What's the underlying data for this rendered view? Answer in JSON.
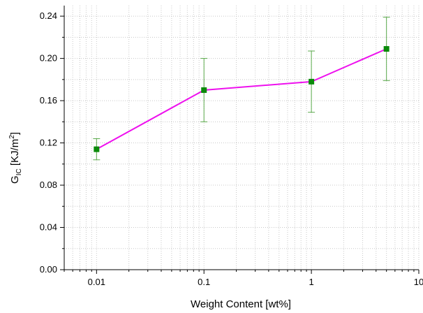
{
  "chart_data": {
    "type": "line",
    "x_scale": "log",
    "title": "",
    "xlabel": "Weight Content [wt%]",
    "ylabel": {
      "main": "G",
      "subscript": "IC",
      "unit_open": " [KJ/m",
      "unit_sup": "2",
      "unit_close": "]"
    },
    "xlim": [
      0.005,
      10
    ],
    "ylim": [
      0,
      0.25
    ],
    "x_ticks": [
      0.01,
      0.1,
      1,
      10
    ],
    "x_tick_labels": [
      "0.01",
      "0.1",
      "1",
      "10"
    ],
    "y_ticks": [
      0,
      0.04,
      0.08,
      0.12,
      0.16,
      0.2,
      0.24
    ],
    "y_tick_labels": [
      "0.00",
      "0.04",
      "0.08",
      "0.12",
      "0.16",
      "0.20",
      "0.24"
    ],
    "grid": true,
    "series": [
      {
        "x": [
          0.01,
          0.1,
          1,
          5
        ],
        "y": [
          0.114,
          0.17,
          0.178,
          0.209
        ],
        "err_low": [
          0.104,
          0.14,
          0.149,
          0.179
        ],
        "err_high": [
          0.124,
          0.2,
          0.207,
          0.239
        ],
        "line_color": "#ee10ee",
        "marker_color": "#0a8a0a",
        "errorbar_color": "#5aaa4a",
        "marker": "square"
      }
    ]
  }
}
